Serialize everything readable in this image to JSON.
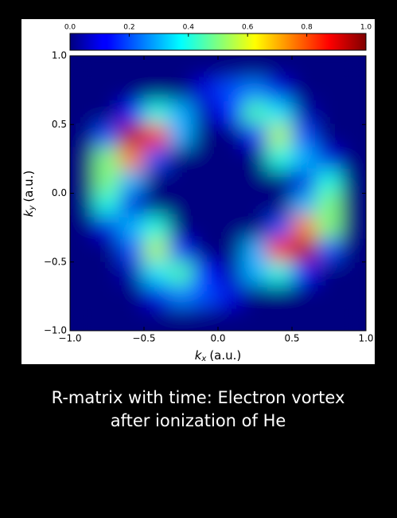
{
  "chart_data": {
    "type": "heatmap",
    "colorbar": {
      "cmap": "jet",
      "lim": [
        0,
        1
      ],
      "ticks": [
        {
          "value": 0,
          "label": "0.0"
        },
        0.2,
        0.4,
        0.6,
        0.8,
        {
          "value": 1,
          "label": "1.0"
        }
      ]
    },
    "x": [
      -0.917,
      -0.75,
      -0.583,
      -0.417,
      -0.25,
      -0.083,
      0.083,
      0.25,
      0.417,
      0.583,
      0.75,
      0.917
    ],
    "y": [
      0.917,
      0.75,
      0.583,
      0.417,
      0.25,
      0.083,
      -0.083,
      -0.25,
      -0.417,
      -0.583,
      -0.75,
      -0.917
    ],
    "z": [
      [
        0,
        0,
        0,
        0,
        0,
        0,
        0,
        0,
        0,
        0,
        0,
        0
      ],
      [
        0,
        0,
        0,
        0,
        0,
        0.1,
        0.2,
        0.25,
        0.1,
        0,
        0,
        0
      ],
      [
        0,
        0,
        0.15,
        0.4,
        0.3,
        0.05,
        0.15,
        0.45,
        0.35,
        0.05,
        0,
        0
      ],
      [
        0,
        0.2,
        0.95,
        0.85,
        0.3,
        0,
        0,
        0.15,
        0.55,
        0.2,
        0,
        0
      ],
      [
        0,
        0.5,
        0.75,
        0.2,
        0,
        0,
        0,
        0,
        0.4,
        0.3,
        0.1,
        0
      ],
      [
        0,
        0.5,
        0.3,
        0,
        0,
        0,
        0,
        0,
        0,
        0.1,
        0.4,
        0
      ],
      [
        0,
        0.4,
        0.1,
        0,
        0,
        0,
        0,
        0,
        0,
        0.3,
        0.5,
        0
      ],
      [
        0,
        0.1,
        0.3,
        0.4,
        0,
        0,
        0,
        0,
        0.2,
        0.75,
        0.5,
        0
      ],
      [
        0,
        0,
        0.2,
        0.55,
        0.15,
        0,
        0,
        0.3,
        0.85,
        0.95,
        0.2,
        0
      ],
      [
        0,
        0,
        0.05,
        0.35,
        0.45,
        0.15,
        0.05,
        0.3,
        0.4,
        0.15,
        0,
        0
      ],
      [
        0,
        0,
        0,
        0.1,
        0.25,
        0.2,
        0.1,
        0,
        0,
        0,
        0,
        0
      ],
      [
        0,
        0,
        0,
        0,
        0,
        0,
        0,
        0,
        0,
        0,
        0,
        0
      ]
    ],
    "xlim": [
      -1,
      1
    ],
    "ylim": [
      -1,
      1
    ],
    "xticks": [
      {
        "value": -1,
        "label": "−1.0"
      },
      {
        "value": -0.5,
        "label": "−0.5"
      },
      {
        "value": 0,
        "label": "0.0"
      },
      0.5,
      {
        "value": 1,
        "label": "1.0"
      }
    ],
    "yticks": [
      {
        "value": -1,
        "label": "−1.0"
      },
      {
        "value": -0.5,
        "label": "−0.5"
      },
      {
        "value": 0,
        "label": "0.0"
      },
      0.5,
      {
        "value": 1,
        "label": "1.0"
      }
    ],
    "xlabel": {
      "symbol": "k",
      "subscript": "x",
      "unit": "(a.u.)"
    },
    "ylabel": {
      "symbol": "k",
      "subscript": "y",
      "unit": "(a.u.)"
    }
  },
  "caption": "R-matrix with time: Electron vortex after ionization of He"
}
